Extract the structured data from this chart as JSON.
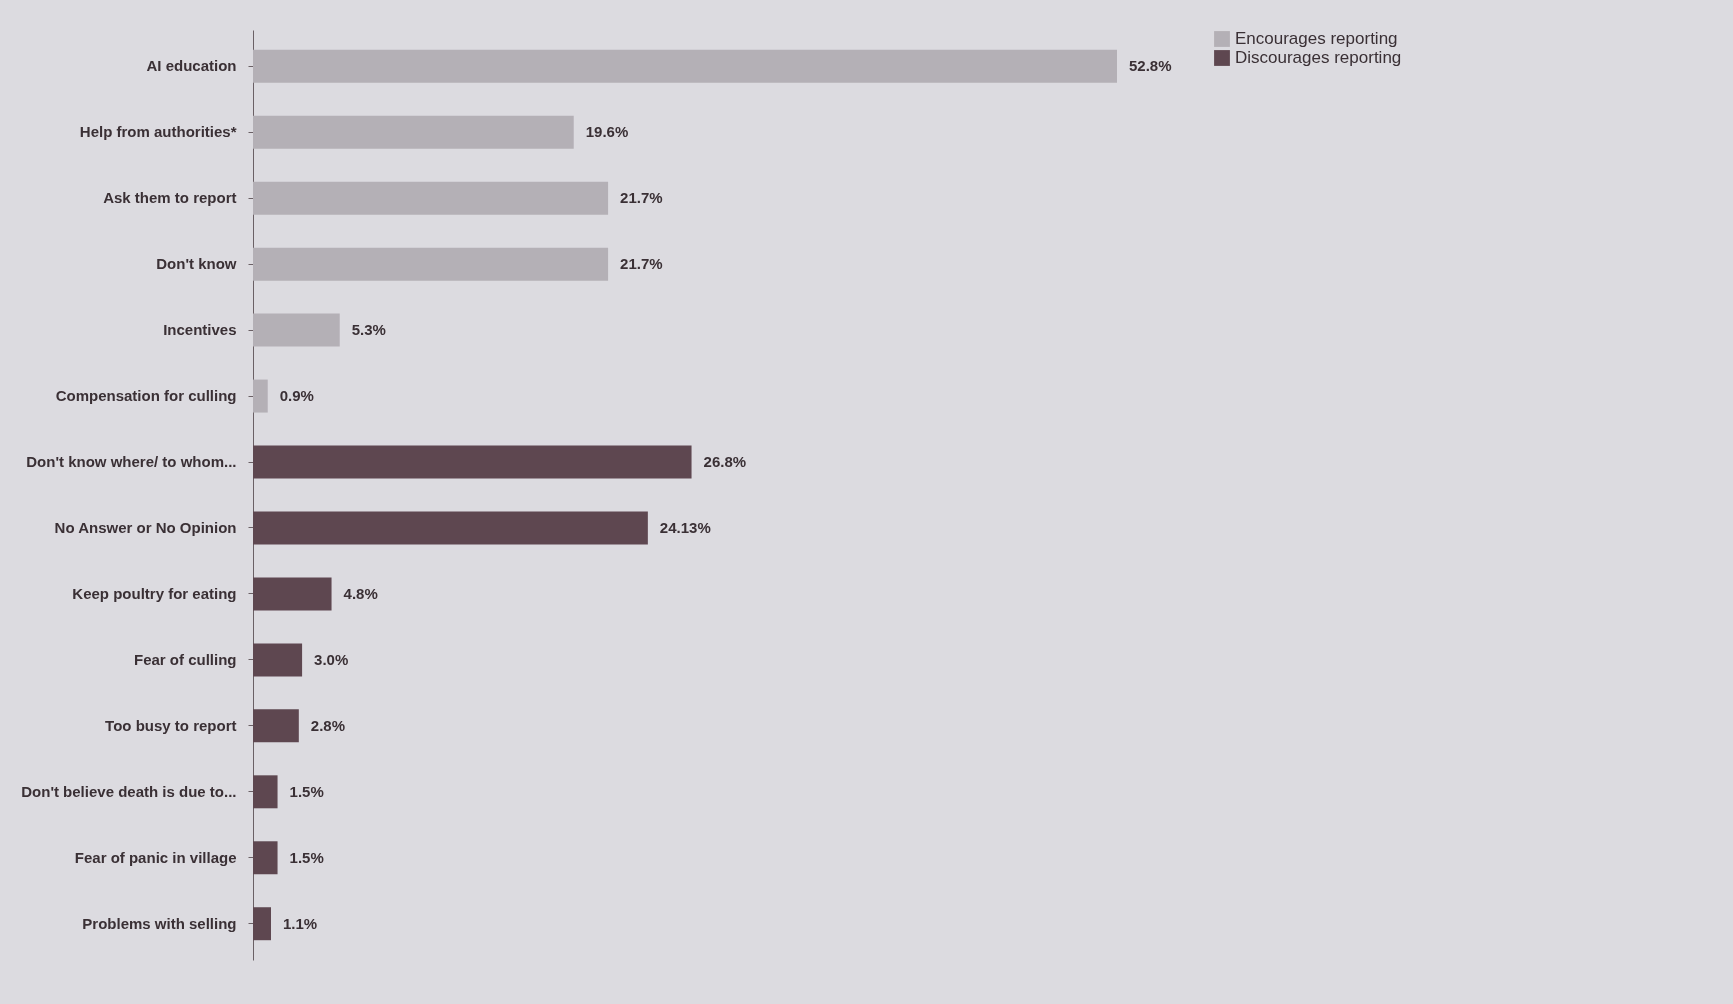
{
  "chart_data": {
    "type": "bar",
    "orientation": "horizontal",
    "legend": "right",
    "categories": [
      "AI education",
      "Help from authorities*",
      "Ask them to report",
      "Don't know",
      "Incentives",
      "Compensation for culling",
      "Don't know where/ to whom...",
      "No Answer or No Opinion",
      "Keep poultry for eating",
      "Fear of culling",
      "Too busy to report",
      "Don't believe death is due to...",
      "Fear of panic in village",
      "Problems with selling"
    ],
    "series": [
      {
        "name": "Encourages reporting",
        "color": "#b4b0b6",
        "values": [
          52.8,
          19.6,
          21.7,
          21.7,
          5.3,
          0.9,
          null,
          null,
          null,
          null,
          null,
          null,
          null,
          null
        ],
        "value_labels": [
          "52.8%",
          "19.6%",
          "21.7%",
          "21.7%",
          "5.3%",
          "0.9%",
          null,
          null,
          null,
          null,
          null,
          null,
          null,
          null
        ]
      },
      {
        "name": "Discourages reporting",
        "color": "#5e4750",
        "values": [
          null,
          null,
          null,
          null,
          null,
          null,
          26.8,
          24.13,
          4.8,
          3.0,
          2.8,
          1.5,
          1.5,
          1.1
        ],
        "value_labels": [
          null,
          null,
          null,
          null,
          null,
          null,
          "26.8%",
          "24.13%",
          "4.8%",
          "3.0%",
          "2.8%",
          "1.5%",
          "1.5%",
          "1.1%"
        ]
      }
    ]
  }
}
